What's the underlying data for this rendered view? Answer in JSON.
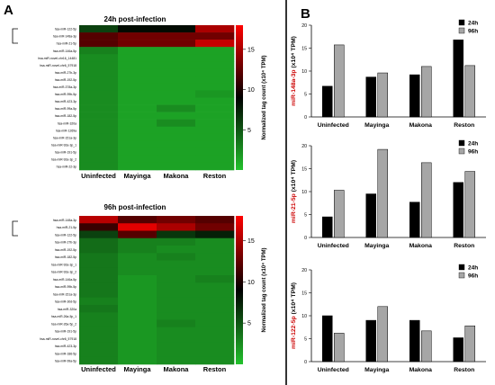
{
  "panels": {
    "a": "A",
    "b": "B"
  },
  "heatmaps": [
    {
      "title": "24h post-infection",
      "rows": [
        "hsa-miR-122-5p",
        "hsa-miR-148a-3p",
        "hsa-miR-21-5p",
        "hsa-miR-146a-5p",
        "hsa-miR-novel-chr16_14481",
        "hsa-miR-novel-chr6_57918",
        "hsa-miR-27b-3p",
        "hsa-miR-192-5p",
        "hsa-miR-378a-3p",
        "hsa-miR-99b-5p",
        "hsa-miR-423-3p",
        "hsa-miR-99a-5p",
        "hsa-miR-182-5p",
        "hsa-miR-320a",
        "hsa-miR-1269a",
        "hsa-miR-151a-3p",
        "hsa-miR-92a-3p_1",
        "hsa-miR-191-5p",
        "hsa-miR-92a-3p_2",
        "hsa-miR-22-3p"
      ],
      "columns": [
        "Uninfected",
        "Mayinga",
        "Makona",
        "Reston"
      ],
      "values": [
        [
          6,
          8.5,
          8.5,
          15
        ],
        [
          12,
          13,
          13,
          13
        ],
        [
          12,
          13,
          13,
          16
        ],
        [
          3,
          1.5,
          1.5,
          1.5
        ],
        [
          2.5,
          1.5,
          1.5,
          1.5
        ],
        [
          2.5,
          1.5,
          1.5,
          1.5
        ],
        [
          2.5,
          1.5,
          1.5,
          1.5
        ],
        [
          2.5,
          1.5,
          1.5,
          1.5
        ],
        [
          2.5,
          1.5,
          1.5,
          1.5
        ],
        [
          2.5,
          1.5,
          1.5,
          2
        ],
        [
          2.5,
          1.5,
          1.5,
          1.5
        ],
        [
          2.5,
          1.5,
          2.5,
          1.5
        ],
        [
          2.5,
          1.5,
          1.5,
          1.5
        ],
        [
          2.5,
          1.5,
          2.5,
          1.5
        ],
        [
          2.5,
          1.5,
          1.5,
          1.5
        ],
        [
          2.5,
          1.5,
          1.5,
          1.5
        ],
        [
          2.5,
          1.5,
          1.5,
          1.5
        ],
        [
          2.5,
          1.5,
          1.5,
          1.5
        ],
        [
          2.5,
          1.5,
          1.5,
          1.5
        ],
        [
          2.5,
          1.5,
          1.5,
          1.5
        ]
      ]
    },
    {
      "title": "96h post-infection",
      "rows": [
        "hsa-miR-148a-3p",
        "hsa-miR-21-5p",
        "hsa-miR-122-5p",
        "hsa-miR-27b-3p",
        "hsa-miR-192-5p",
        "hsa-miR-182-5p",
        "hsa-miR-92a-3p_1",
        "hsa-miR-92a-3p_2",
        "hsa-miR-146a-5p",
        "hsa-miR-99b-5p",
        "hsa-miR-151a-3p",
        "hsa-miR-30d-5p",
        "hsa-miR-320a",
        "hsa-miR-26a-5p_1",
        "hsa-miR-26a-5p_2",
        "hsa-miR-191-5p",
        "hsa-miR-novel-chr6_57918",
        "hsa-miR-423-3p",
        "hsa-miR-186-5p",
        "hsa-miR-99a-5p"
      ],
      "columns": [
        "Uninfected",
        "Mayinga",
        "Makona",
        "Reston"
      ],
      "values": [
        [
          15.5,
          12,
          13,
          12
        ],
        [
          11,
          17,
          15,
          13
        ],
        [
          6,
          12,
          6.5,
          7.5
        ],
        [
          4,
          3,
          3,
          2.5
        ],
        [
          4,
          3,
          2.5,
          2.5
        ],
        [
          3.5,
          2.5,
          3,
          2.5
        ],
        [
          3.5,
          2.5,
          2.5,
          2.5
        ],
        [
          3.5,
          2.5,
          2.5,
          2.5
        ],
        [
          3.5,
          2,
          2.5,
          3
        ],
        [
          3.5,
          2,
          2.5,
          2.5
        ],
        [
          3.5,
          2,
          2.5,
          2.5
        ],
        [
          3,
          2,
          2.5,
          2.5
        ],
        [
          3.5,
          2,
          2.5,
          2.5
        ],
        [
          3,
          2,
          2.5,
          2.5
        ],
        [
          3,
          2,
          3,
          2.5
        ],
        [
          3,
          2,
          2.5,
          2.5
        ],
        [
          3,
          2,
          2.5,
          2.5
        ],
        [
          3,
          2,
          2.5,
          2.5
        ],
        [
          3,
          2,
          2.5,
          2.5
        ],
        [
          3,
          2,
          2.5,
          2.5
        ]
      ]
    }
  ],
  "colorbar": {
    "title": "Normalized tag count (x10⁴ TPM)",
    "ticks": [
      "15",
      "10",
      "5"
    ],
    "range": [
      0,
      18
    ]
  },
  "colors": {
    "low": "#22c22c",
    "mid": "#000000",
    "high": "#ff0000",
    "bar24": "#000000",
    "bar96": "#a6a6a6",
    "ylabel": "#cc0000"
  },
  "chart_data": [
    {
      "type": "bar",
      "categories": [
        "Uninfected",
        "Mayinga",
        "Makona",
        "Reston"
      ],
      "series": [
        {
          "name": "24h",
          "values": [
            6.7,
            8.7,
            9.2,
            16.8
          ]
        },
        {
          "name": "96h",
          "values": [
            15.7,
            9.6,
            11,
            11.2
          ]
        }
      ],
      "ylabel_gene": "miR-148a-3p",
      "ylabel_unit": "(x10⁴ TPM)",
      "ylim": [
        0,
        20
      ],
      "yticks": [
        "0",
        "5",
        "10",
        "15",
        "20"
      ]
    },
    {
      "type": "bar",
      "categories": [
        "Uninfected",
        "Mayinga",
        "Makona",
        "Reston"
      ],
      "series": [
        {
          "name": "24h",
          "values": [
            4.5,
            9.5,
            7.7,
            12
          ]
        },
        {
          "name": "96h",
          "values": [
            10.3,
            19.2,
            16.3,
            14.4
          ]
        }
      ],
      "ylabel_gene": "miR-21-5p",
      "ylabel_unit": "(x10⁴ TPM)",
      "ylim": [
        0,
        20
      ],
      "yticks": [
        "0",
        "5",
        "10",
        "15",
        "20"
      ]
    },
    {
      "type": "bar",
      "categories": [
        "Uninfected",
        "Mayinga",
        "Makona",
        "Reston"
      ],
      "series": [
        {
          "name": "24h",
          "values": [
            10,
            9,
            9,
            5.2
          ]
        },
        {
          "name": "96h",
          "values": [
            6.2,
            12,
            6.7,
            7.8
          ]
        }
      ],
      "ylabel_gene": "miR-122-5p",
      "ylabel_unit": "(x10⁴ TPM)",
      "ylim": [
        0,
        20
      ],
      "yticks": [
        "0",
        "5",
        "10",
        "15",
        "20"
      ]
    }
  ]
}
